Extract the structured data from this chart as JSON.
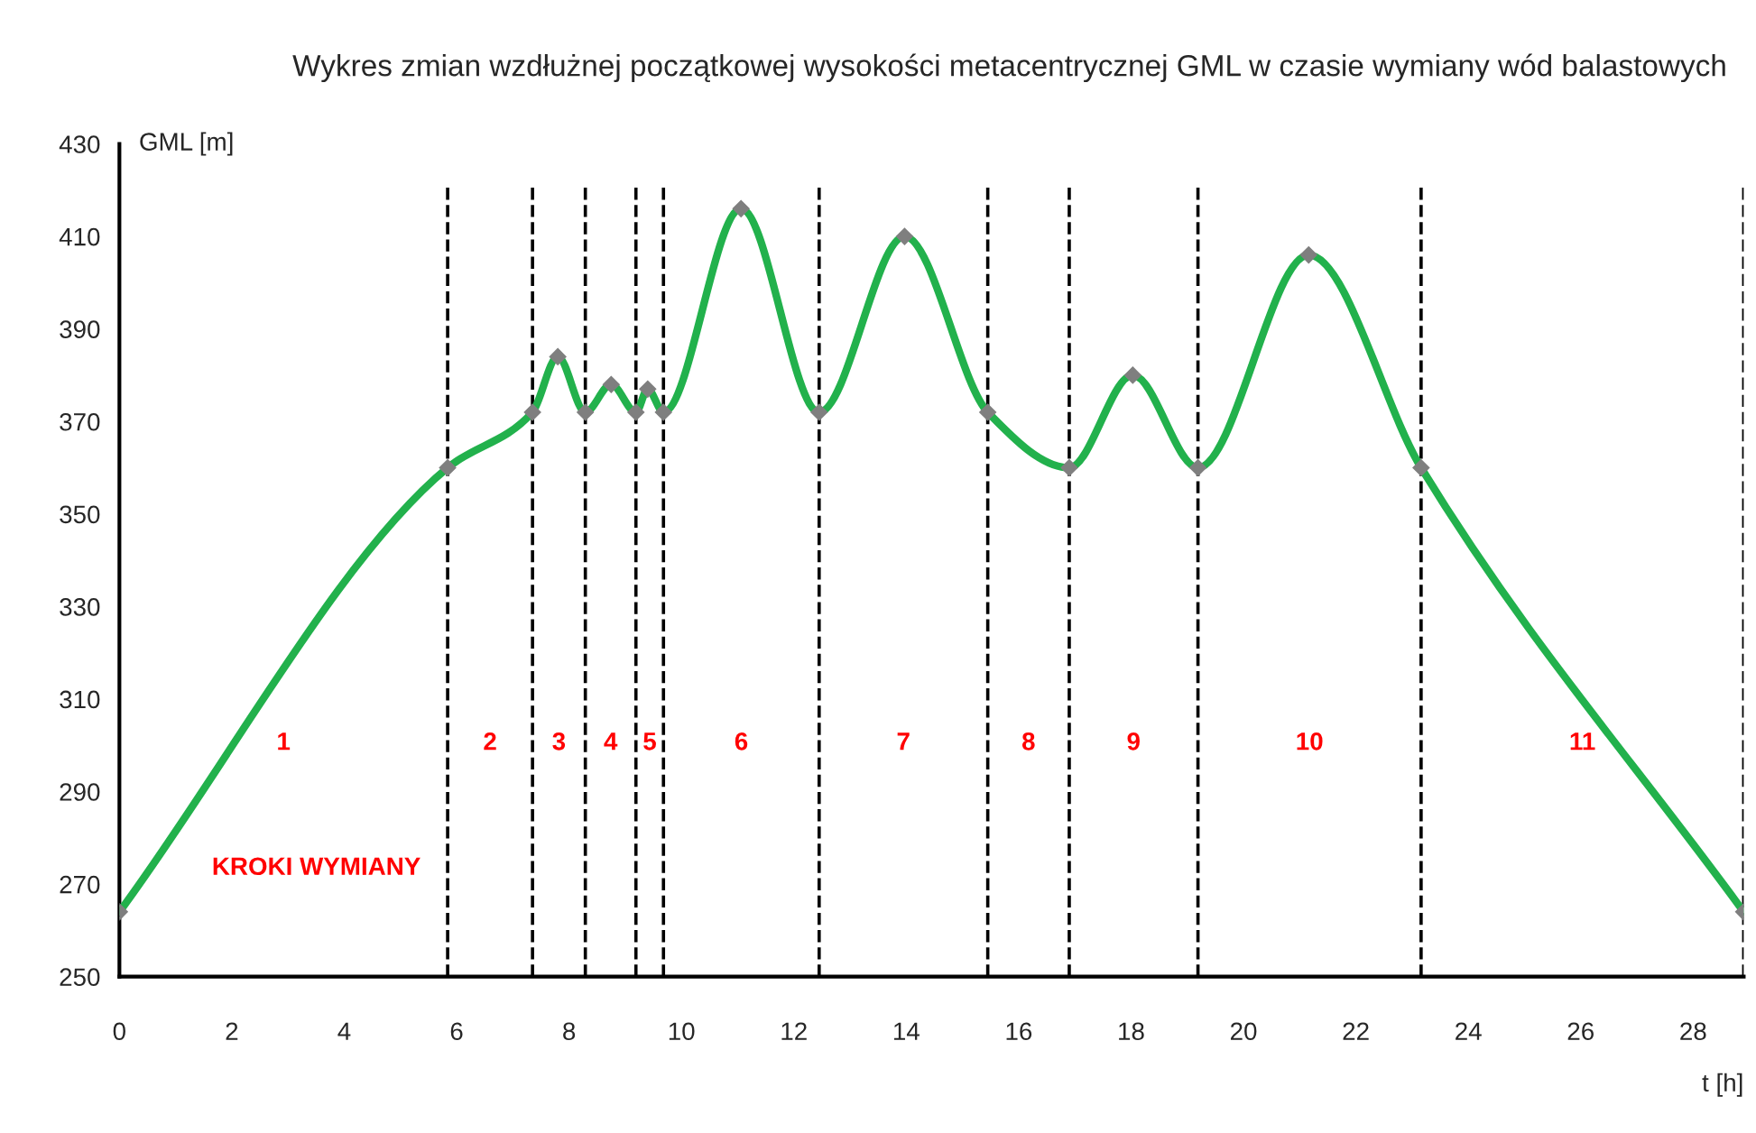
{
  "chart_data": {
    "type": "line",
    "title": "Wykres zmian wzdłużnej początkowej wysokości metacentrycznej GML w czasie wymiany wód balastowych",
    "xlabel": "t [h]",
    "ylabel": "GML [m]",
    "series": [
      {
        "color": "#22b14c",
        "x": [
          0,
          5.84,
          7.35,
          7.8,
          8.29,
          8.75,
          9.19,
          9.4,
          9.68,
          11.06,
          12.45,
          13.97,
          15.45,
          16.9,
          18.03,
          19.19,
          21.16,
          23.16,
          28.9
        ],
        "values": [
          264,
          360,
          372,
          384,
          372,
          378,
          372,
          377,
          372,
          416,
          372,
          410,
          372,
          360,
          380,
          360,
          406,
          360,
          264
        ]
      }
    ],
    "marker": "diamond",
    "line_style": "solid",
    "grid": false,
    "legend": false,
    "xlim": [
      0,
      28.9
    ],
    "xticks": [
      0,
      2,
      4,
      6,
      8,
      10,
      12,
      14,
      16,
      18,
      20,
      22,
      24,
      26,
      28
    ],
    "ylim": [
      250,
      430
    ],
    "yticks": [
      250,
      270,
      290,
      310,
      330,
      350,
      370,
      390,
      410,
      430
    ],
    "ref_lines": [
      {
        "axis": "x",
        "value": 5.84,
        "line_style": "dashed",
        "color": "#000000"
      },
      {
        "axis": "x",
        "value": 7.35,
        "line_style": "dashed",
        "color": "#000000"
      },
      {
        "axis": "x",
        "value": 8.29,
        "line_style": "dashed",
        "color": "#000000"
      },
      {
        "axis": "x",
        "value": 9.19,
        "line_style": "dashed",
        "color": "#000000"
      },
      {
        "axis": "x",
        "value": 9.68,
        "line_style": "dashed",
        "color": "#000000"
      },
      {
        "axis": "x",
        "value": 12.45,
        "line_style": "dashed",
        "color": "#000000"
      },
      {
        "axis": "x",
        "value": 15.45,
        "line_style": "dashed",
        "color": "#000000"
      },
      {
        "axis": "x",
        "value": 16.9,
        "line_style": "dashed",
        "color": "#000000"
      },
      {
        "axis": "x",
        "value": 19.19,
        "line_style": "dashed",
        "color": "#000000"
      },
      {
        "axis": "x",
        "value": 23.16,
        "line_style": "dashed",
        "color": "#000000"
      },
      {
        "axis": "x",
        "value": 28.9,
        "line_style": "dashed",
        "color": "#000000"
      }
    ],
    "annotations": [
      "1",
      "2",
      "3",
      "4",
      "5",
      "6",
      "7",
      "8",
      "9",
      "10",
      "11",
      "KROKI WYMIANY"
    ]
  }
}
